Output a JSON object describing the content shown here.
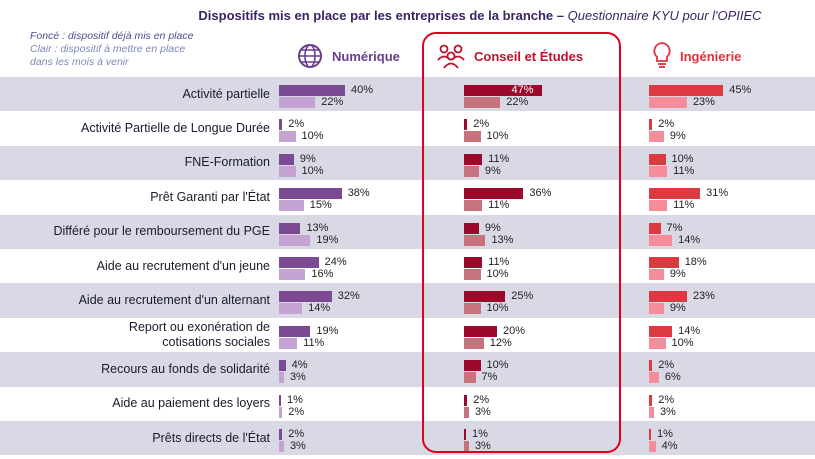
{
  "title_bold": "Dispositifs mis en place par les entreprises de la branche –",
  "title_italic": " Questionnaire KYU pour l'OPIIEC",
  "legend": {
    "dark": "Foncé : dispositif déjà mis en place",
    "light_line1": "Clair : dispositif à mettre en place",
    "light_line2": "dans les mois à venir"
  },
  "colors": {
    "band": "#d9d9e6",
    "numerique_dark": "#7b4a93",
    "numerique_light": "#c4a2d2",
    "numerique_text": "#6b3d8c",
    "conseil_dark": "#9b0a2a",
    "conseil_light": "#c7737e",
    "conseil_text": "#c0102b",
    "ingenierie_dark": "#dc3a40",
    "ingenierie_light": "#f48c9a",
    "ingenierie_text": "#e3303e",
    "frame": "#e3001b"
  },
  "chart_data": {
    "type": "bar",
    "orientation": "horizontal",
    "title": "Dispositifs mis en place par les entreprises de la branche – Questionnaire KYU pour l'OPIIEC",
    "categories": [
      "Activité partielle",
      "Activité Partielle de Longue Durée",
      "FNE-Formation",
      "Prêt Garanti par l'État",
      "Différé pour le remboursement du PGE",
      "Aide au recrutement d'un jeune",
      "Aide au recrutement d'un alternant",
      "Report ou exonération de cotisations sociales",
      "Recours au fonds de solidarité",
      "Aide au paiement des loyers",
      "Prêts directs de l'État"
    ],
    "panels": [
      {
        "name": "Numérique",
        "icon": "globe-icon",
        "series": [
          {
            "name": "Foncé",
            "values": [
              40,
              2,
              9,
              38,
              13,
              24,
              32,
              19,
              4,
              1,
              2
            ]
          },
          {
            "name": "Clair",
            "values": [
              22,
              10,
              10,
              15,
              19,
              16,
              14,
              11,
              3,
              2,
              3
            ]
          }
        ]
      },
      {
        "name": "Conseil et Études",
        "icon": "people-icon",
        "series": [
          {
            "name": "Foncé",
            "values": [
              47,
              2,
              11,
              36,
              9,
              11,
              25,
              20,
              10,
              2,
              1
            ]
          },
          {
            "name": "Clair",
            "values": [
              22,
              10,
              9,
              11,
              13,
              10,
              10,
              12,
              7,
              3,
              3
            ]
          }
        ]
      },
      {
        "name": "Ingénierie",
        "icon": "lightbulb-icon",
        "series": [
          {
            "name": "Foncé",
            "values": [
              45,
              2,
              10,
              31,
              7,
              18,
              23,
              14,
              2,
              2,
              1
            ]
          },
          {
            "name": "Clair",
            "values": [
              23,
              9,
              11,
              11,
              14,
              9,
              9,
              10,
              6,
              3,
              4
            ]
          }
        ]
      }
    ],
    "value_suffix": "%"
  }
}
